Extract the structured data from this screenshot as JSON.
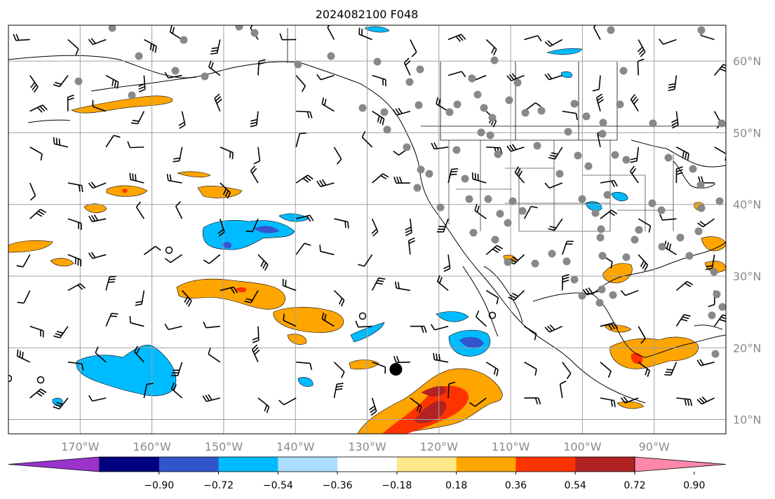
{
  "title": "2024082100 F048",
  "map": {
    "lon_range": [
      -180,
      -80
    ],
    "lat_range": [
      8,
      65
    ],
    "lon_ticks": [
      {
        "value": -170,
        "label": "170°W"
      },
      {
        "value": -160,
        "label": "160°W"
      },
      {
        "value": -150,
        "label": "150°W"
      },
      {
        "value": -140,
        "label": "140°W"
      },
      {
        "value": -130,
        "label": "130°W"
      },
      {
        "value": -120,
        "label": "120°W"
      },
      {
        "value": -110,
        "label": "110°W"
      },
      {
        "value": -100,
        "label": "100°W"
      },
      {
        "value": -90,
        "label": "90°W"
      }
    ],
    "lat_ticks": [
      {
        "value": 60,
        "label": "60°N"
      },
      {
        "value": 50,
        "label": "50°N"
      },
      {
        "value": 40,
        "label": "40°N"
      },
      {
        "value": 30,
        "label": "30°N"
      },
      {
        "value": 20,
        "label": "20°N"
      },
      {
        "value": 10,
        "label": "10°N"
      }
    ],
    "gridlines": true,
    "marker": {
      "lon": -126,
      "lat": 17,
      "color": "#000000"
    }
  },
  "colorbar": {
    "colors": [
      "#9933cc",
      "#000080",
      "#3355cc",
      "#00bbff",
      "#aaddff",
      "#ffffff",
      "#ffe88a",
      "#ffa500",
      "#ff3300",
      "#b22222",
      "#ff88aa"
    ],
    "boundaries": [
      "−0.90",
      "−0.72",
      "−0.54",
      "−0.36",
      "−0.18",
      "0.18",
      "0.36",
      "0.54",
      "0.72",
      "0.90"
    ]
  },
  "colors": {
    "grid": "#a0a0a0",
    "station": "#888888",
    "coast": "#000000"
  }
}
